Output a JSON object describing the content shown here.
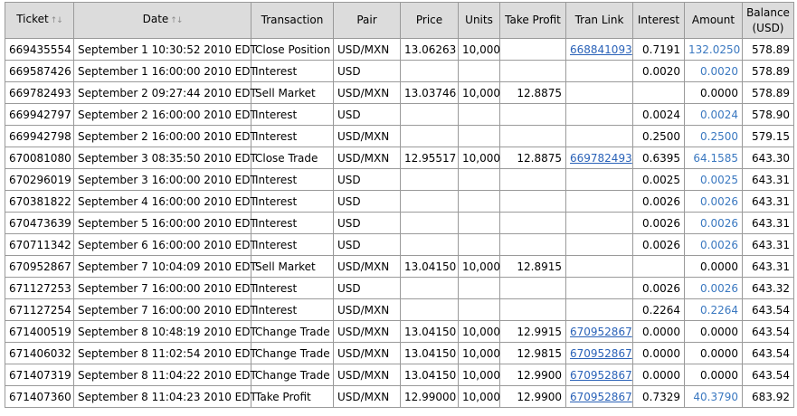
{
  "table": {
    "headers": {
      "ticket": "Ticket",
      "date": "Date",
      "transaction": "Transaction",
      "pair": "Pair",
      "price": "Price",
      "units": "Units",
      "take_profit": "Take Profit",
      "tran_link": "Tran Link",
      "interest": "Interest",
      "amount": "Amount",
      "balance": "Balance",
      "balance_unit": "(USD)",
      "sort_icon": "↑↓"
    },
    "rows": [
      {
        "ticket": "669435554",
        "date": "September 1 10:30:52 2010 EDT",
        "transaction": "Close Position",
        "pair": "USD/MXN",
        "price": "13.06263",
        "units": "10,000",
        "take_profit": "",
        "tran_link": "668841093",
        "interest": "0.7191",
        "amount": "132.0250",
        "amount_color": "#3a78c0",
        "balance": "578.89"
      },
      {
        "ticket": "669587426",
        "date": "September 1 16:00:00 2010 EDT",
        "transaction": "Interest",
        "pair": "USD",
        "price": "",
        "units": "",
        "take_profit": "",
        "tran_link": "",
        "interest": "0.0020",
        "amount": "0.0020",
        "amount_color": "#3a78c0",
        "balance": "578.89"
      },
      {
        "ticket": "669782493",
        "date": "September 2 09:27:44 2010 EDT",
        "transaction": "Sell Market",
        "pair": "USD/MXN",
        "price": "13.03746",
        "units": "10,000",
        "take_profit": "12.8875",
        "tran_link": "",
        "interest": "",
        "amount": "0.0000",
        "amount_color": "#000000",
        "balance": "578.89"
      },
      {
        "ticket": "669942797",
        "date": "September 2 16:00:00 2010 EDT",
        "transaction": "Interest",
        "pair": "USD",
        "price": "",
        "units": "",
        "take_profit": "",
        "tran_link": "",
        "interest": "0.0024",
        "amount": "0.0024",
        "amount_color": "#3a78c0",
        "balance": "578.90"
      },
      {
        "ticket": "669942798",
        "date": "September 2 16:00:00 2010 EDT",
        "transaction": "Interest",
        "pair": "USD/MXN",
        "price": "",
        "units": "",
        "take_profit": "",
        "tran_link": "",
        "interest": "0.2500",
        "amount": "0.2500",
        "amount_color": "#3a78c0",
        "balance": "579.15"
      },
      {
        "ticket": "670081080",
        "date": "September 3 08:35:50 2010 EDT",
        "transaction": "Close Trade",
        "pair": "USD/MXN",
        "price": "12.95517",
        "units": "10,000",
        "take_profit": "12.8875",
        "tran_link": "669782493",
        "interest": "0.6395",
        "amount": "64.1585",
        "amount_color": "#3a78c0",
        "balance": "643.30"
      },
      {
        "ticket": "670296019",
        "date": "September 3 16:00:00 2010 EDT",
        "transaction": "Interest",
        "pair": "USD",
        "price": "",
        "units": "",
        "take_profit": "",
        "tran_link": "",
        "interest": "0.0025",
        "amount": "0.0025",
        "amount_color": "#3a78c0",
        "balance": "643.31"
      },
      {
        "ticket": "670381822",
        "date": "September 4 16:00:00 2010 EDT",
        "transaction": "Interest",
        "pair": "USD",
        "price": "",
        "units": "",
        "take_profit": "",
        "tran_link": "",
        "interest": "0.0026",
        "amount": "0.0026",
        "amount_color": "#3a78c0",
        "balance": "643.31"
      },
      {
        "ticket": "670473639",
        "date": "September 5 16:00:00 2010 EDT",
        "transaction": "Interest",
        "pair": "USD",
        "price": "",
        "units": "",
        "take_profit": "",
        "tran_link": "",
        "interest": "0.0026",
        "amount": "0.0026",
        "amount_color": "#3a78c0",
        "balance": "643.31"
      },
      {
        "ticket": "670711342",
        "date": "September 6 16:00:00 2010 EDT",
        "transaction": "Interest",
        "pair": "USD",
        "price": "",
        "units": "",
        "take_profit": "",
        "tran_link": "",
        "interest": "0.0026",
        "amount": "0.0026",
        "amount_color": "#3a78c0",
        "balance": "643.31"
      },
      {
        "ticket": "670952867",
        "date": "September 7 10:04:09 2010 EDT",
        "transaction": "Sell Market",
        "pair": "USD/MXN",
        "price": "13.04150",
        "units": "10,000",
        "take_profit": "12.8915",
        "tran_link": "",
        "interest": "",
        "amount": "0.0000",
        "amount_color": "#000000",
        "balance": "643.31"
      },
      {
        "ticket": "671127253",
        "date": "September 7 16:00:00 2010 EDT",
        "transaction": "Interest",
        "pair": "USD",
        "price": "",
        "units": "",
        "take_profit": "",
        "tran_link": "",
        "interest": "0.0026",
        "amount": "0.0026",
        "amount_color": "#3a78c0",
        "balance": "643.32"
      },
      {
        "ticket": "671127254",
        "date": "September 7 16:00:00 2010 EDT",
        "transaction": "Interest",
        "pair": "USD/MXN",
        "price": "",
        "units": "",
        "take_profit": "",
        "tran_link": "",
        "interest": "0.2264",
        "amount": "0.2264",
        "amount_color": "#3a78c0",
        "balance": "643.54"
      },
      {
        "ticket": "671400519",
        "date": "September 8 10:48:19 2010 EDT",
        "transaction": "Change Trade",
        "pair": "USD/MXN",
        "price": "13.04150",
        "units": "10,000",
        "take_profit": "12.9915",
        "tran_link": "670952867",
        "interest": "0.0000",
        "amount": "0.0000",
        "amount_color": "#000000",
        "balance": "643.54"
      },
      {
        "ticket": "671406032",
        "date": "September 8 11:02:54 2010 EDT",
        "transaction": "Change Trade",
        "pair": "USD/MXN",
        "price": "13.04150",
        "units": "10,000",
        "take_profit": "12.9815",
        "tran_link": "670952867",
        "interest": "0.0000",
        "amount": "0.0000",
        "amount_color": "#000000",
        "balance": "643.54"
      },
      {
        "ticket": "671407319",
        "date": "September 8 11:04:22 2010 EDT",
        "transaction": "Change Trade",
        "pair": "USD/MXN",
        "price": "13.04150",
        "units": "10,000",
        "take_profit": "12.9900",
        "tran_link": "670952867",
        "interest": "0.0000",
        "amount": "0.0000",
        "amount_color": "#000000",
        "balance": "643.54"
      },
      {
        "ticket": "671407360",
        "date": "September 8 11:04:23 2010 EDT",
        "transaction": "Take Profit",
        "pair": "USD/MXN",
        "price": "12.99000",
        "units": "10,000",
        "take_profit": "12.9900",
        "tran_link": "670952867",
        "interest": "0.7329",
        "amount": "40.3790",
        "amount_color": "#3a78c0",
        "balance": "683.92"
      }
    ]
  }
}
